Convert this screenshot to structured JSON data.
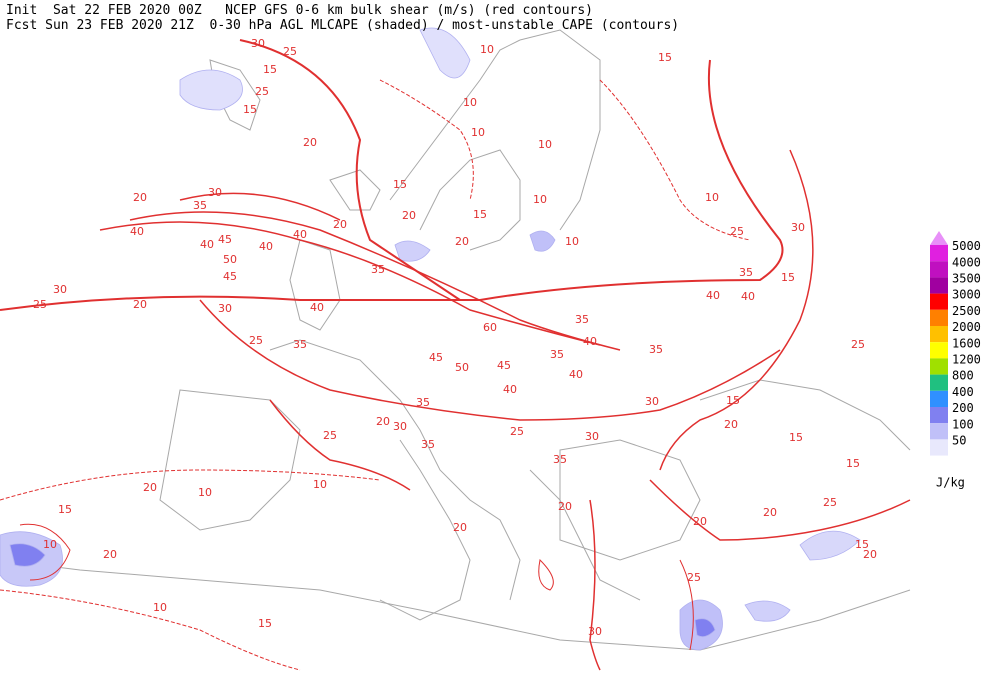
{
  "header": {
    "line1": "Init  Sat 22 FEB 2020 00Z   NCEP GFS 0-6 km bulk shear (m/s) (red contours)",
    "line2": "Fcst Sun 23 FEB 2020 21Z  0-30 hPa AGL MLCAPE (shaded) / most-unstable CAPE (contours)"
  },
  "legend": {
    "levels": [
      5000,
      4000,
      3500,
      3000,
      2500,
      2000,
      1600,
      1200,
      800,
      400,
      200,
      100,
      50
    ],
    "colors": [
      "#e020e0",
      "#c010c0",
      "#a000a0",
      "#ff0000",
      "#ff8000",
      "#ffc000",
      "#ffff00",
      "#a0e000",
      "#20c080",
      "#3090ff",
      "#8080f0",
      "#c0c0f8",
      "#e8e8fc"
    ],
    "top_color": "#e890f8",
    "unit": "J/kg"
  },
  "contour_labels": [
    30,
    25,
    15,
    25,
    15,
    20,
    10,
    10,
    10,
    15,
    10,
    15,
    20,
    15,
    20,
    10,
    30,
    20,
    35,
    40,
    45,
    50,
    40,
    40,
    45,
    40,
    35,
    20,
    30,
    25,
    20,
    30,
    40,
    35,
    25,
    60,
    45,
    50,
    45,
    35,
    40,
    35,
    40,
    35,
    40,
    30,
    40,
    10,
    25,
    40,
    35,
    15,
    30,
    25,
    15,
    20,
    15,
    15,
    20,
    30,
    35,
    35,
    25,
    30,
    35,
    25,
    20,
    20,
    20,
    20,
    25,
    15,
    20,
    25,
    30,
    20,
    10,
    15,
    10,
    20,
    15,
    10,
    10,
    10
  ]
}
